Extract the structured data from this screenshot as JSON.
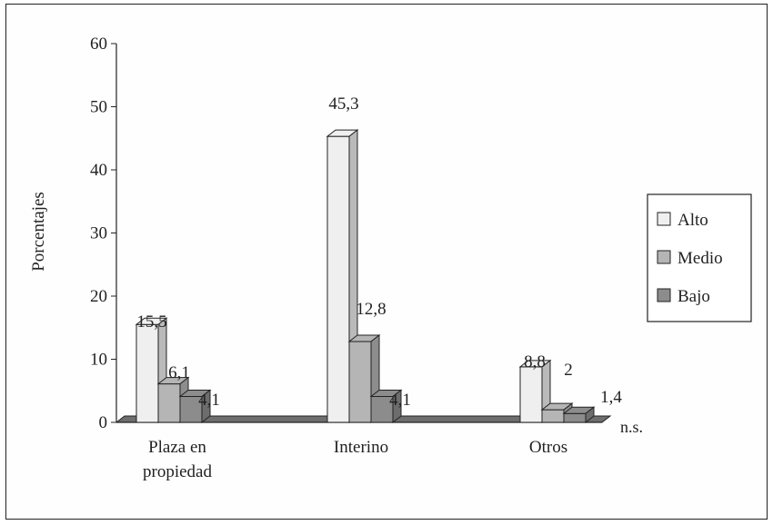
{
  "chart_data": {
    "type": "bar",
    "style": "3d-clustered",
    "categories": [
      "Plaza en propiedad",
      "Interino",
      "Otros"
    ],
    "category_lines": [
      [
        "Plaza en",
        "propiedad"
      ],
      [
        "Interino"
      ],
      [
        "Otros"
      ]
    ],
    "series": [
      {
        "name": "Alto",
        "values": [
          15.5,
          45.3,
          8.8
        ],
        "labels": [
          "15,5",
          "45,3",
          "8,8"
        ],
        "color": "#efefef"
      },
      {
        "name": "Medio",
        "values": [
          6.1,
          12.8,
          2
        ],
        "labels": [
          "6,1",
          "12,8",
          "2"
        ],
        "color": "#b5b5b5"
      },
      {
        "name": "Bajo",
        "values": [
          4.1,
          4.1,
          1.4
        ],
        "labels": [
          "4,1",
          "4,1",
          "1,4"
        ],
        "color": "#8c8c8c"
      }
    ],
    "ylabel": "Porcentajes",
    "xlabel": "",
    "ylim": [
      0,
      60
    ],
    "yticks": [
      0,
      10,
      20,
      30,
      40,
      50,
      60
    ],
    "annotation": "n.s.",
    "legend_position": "right",
    "grid": false
  }
}
